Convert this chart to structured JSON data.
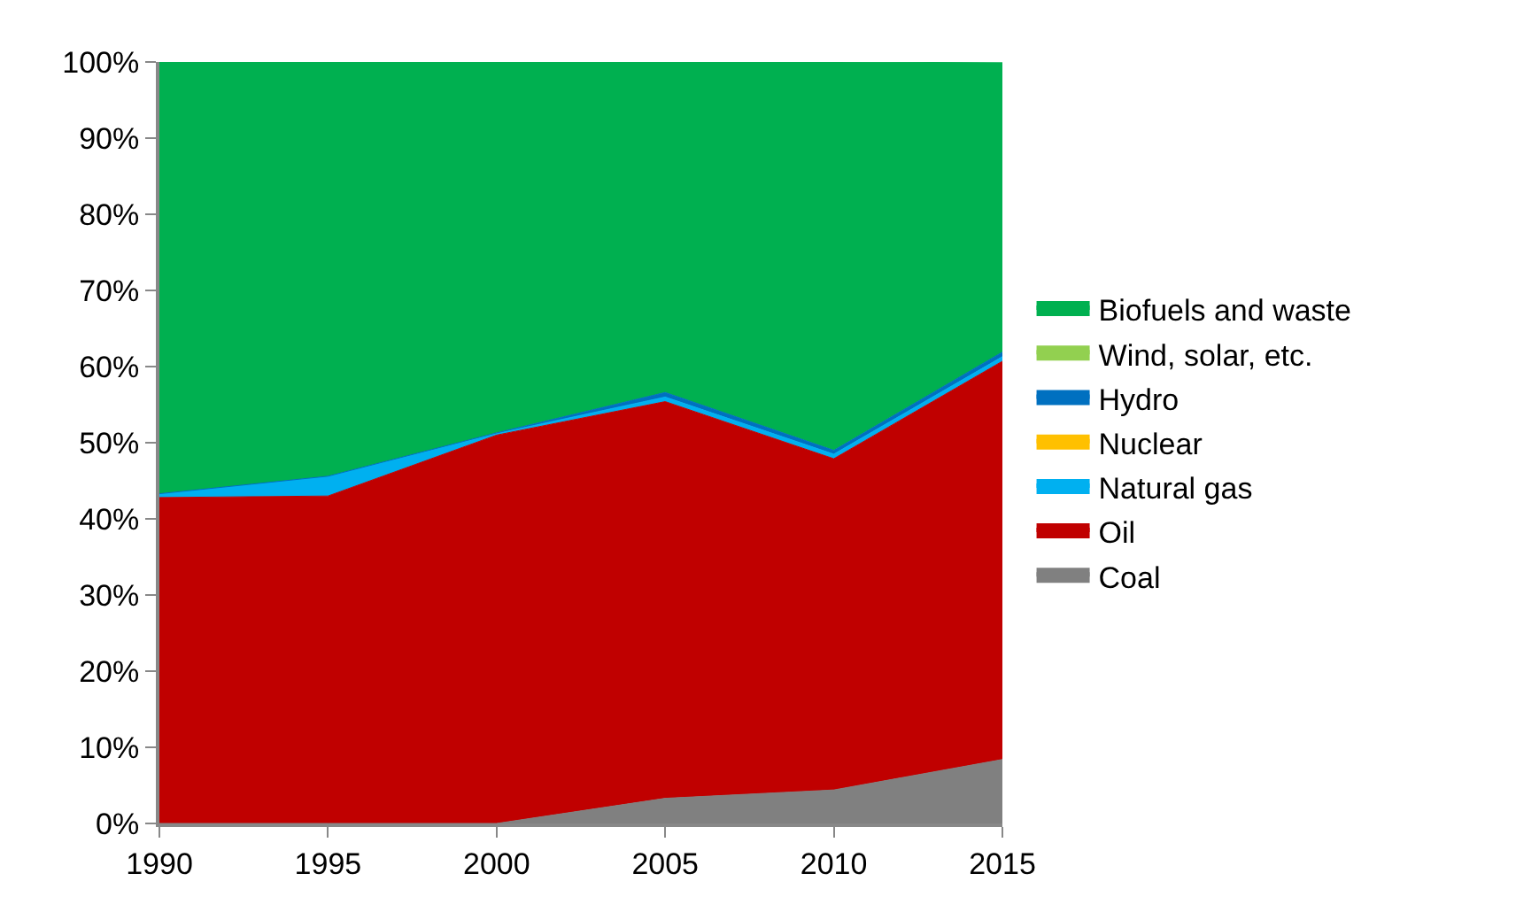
{
  "chart_data": {
    "type": "area",
    "stacked": true,
    "x": [
      1990,
      1995,
      2000,
      2005,
      2010,
      2015
    ],
    "series": [
      {
        "name": "Coal",
        "color": "#808080",
        "values": [
          0,
          0,
          0,
          3.3,
          4.4,
          8.4
        ]
      },
      {
        "name": "Oil",
        "color": "#c00000",
        "values": [
          42.8,
          43.0,
          51.0,
          52.1,
          43.5,
          52.3
        ]
      },
      {
        "name": "Natural gas",
        "color": "#00b0f0",
        "values": [
          0.5,
          2.6,
          0.2,
          0.6,
          0.6,
          0.6
        ]
      },
      {
        "name": "Nuclear",
        "color": "#ffc000",
        "values": [
          null,
          null,
          null,
          null,
          null,
          null
        ]
      },
      {
        "name": "Hydro",
        "color": "#0070c0",
        "values": [
          0,
          0,
          0.1,
          0.6,
          0.5,
          0.6
        ]
      },
      {
        "name": "Wind, solar, etc.",
        "color": "#92d050",
        "values": [
          null,
          null,
          null,
          null,
          null,
          null
        ]
      },
      {
        "name": "Biofuels and waste",
        "color": "#00b050",
        "values": [
          56.7,
          54.4,
          48.7,
          43.4,
          51.0,
          38.0
        ]
      }
    ],
    "xlim": [
      1990,
      2015
    ],
    "xticks": [
      1990,
      1995,
      2000,
      2005,
      2010,
      2015
    ],
    "ylim": [
      0,
      100
    ],
    "yticks": [
      {
        "value": 0,
        "label": "0%"
      },
      {
        "value": 10,
        "label": "10%"
      },
      {
        "value": 20,
        "label": "20%"
      },
      {
        "value": 30,
        "label": "30%"
      },
      {
        "value": 40,
        "label": "40%"
      },
      {
        "value": 50,
        "label": "50%"
      },
      {
        "value": 60,
        "label": "60%"
      },
      {
        "value": 70,
        "label": "70%"
      },
      {
        "value": 80,
        "label": "80%"
      },
      {
        "value": 90,
        "label": "90%"
      },
      {
        "value": 100,
        "label": "100%"
      }
    ],
    "legend": "right"
  }
}
